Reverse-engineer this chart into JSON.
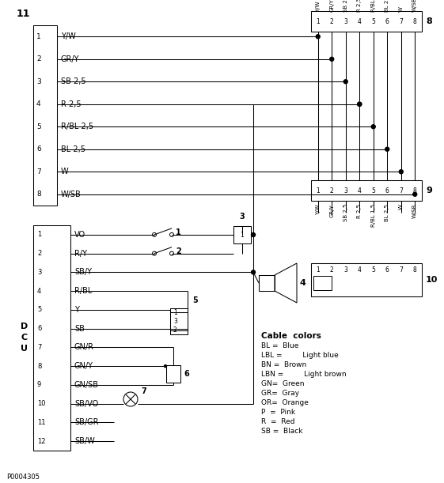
{
  "bg": "#ffffff",
  "lc": "#000000",
  "conn8_labels": [
    "Y/W",
    "GR/Y",
    "SB 2,5",
    "R 2,5",
    "R/BL 1,5",
    "BL 2,5",
    "W",
    "W/SB"
  ],
  "conn9_labels": [
    "Y/W",
    "GR/Y",
    "SB 2,5",
    "R 2,5",
    "R/BL 1,5",
    "BL 2,5",
    "W",
    "W/SB"
  ],
  "conn11_labels": [
    "Y/W",
    "GR/Y",
    "SB 2,5",
    "R 2,5",
    "R/BL 2,5",
    "BL 2,5",
    "W",
    "W/SB"
  ],
  "dcu_labels": [
    "VO",
    "R/Y",
    "SB/Y",
    "R/BL",
    "Y",
    "SB",
    "GN/R",
    "GN/Y",
    "GN/SB",
    "SB/VO",
    "SB/GR",
    "SB/W"
  ],
  "cable_col_title": "Cable  colors",
  "cable_colors": [
    [
      "BL",
      "=",
      "Blue",
      ""
    ],
    [
      "LBL",
      "=",
      "",
      "Light blue"
    ],
    [
      "BN",
      "=",
      "Brown",
      ""
    ],
    [
      "LBN",
      "=",
      "",
      "Light brown"
    ],
    [
      "GN=",
      "Green",
      "",
      ""
    ],
    [
      "GR=",
      "Gray",
      "",
      ""
    ],
    [
      "OR=",
      "Orange",
      "",
      ""
    ],
    [
      "P",
      "=",
      "Pink",
      ""
    ],
    [
      "R",
      "=",
      "Red",
      ""
    ],
    [
      "SB",
      "=",
      "Black",
      ""
    ]
  ],
  "part_number": "P0004305"
}
